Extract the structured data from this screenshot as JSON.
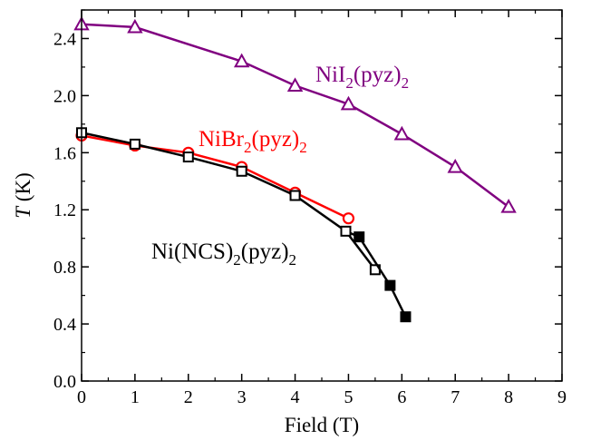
{
  "chart_data": {
    "type": "line",
    "xlabel_prefix": "Field",
    "xlabel_unit": "(T)",
    "ylabel_var": "T",
    "ylabel_unit": "(K)",
    "xlim": [
      0,
      9
    ],
    "ylim": [
      0,
      2.6
    ],
    "xticks": [
      0,
      1,
      2,
      3,
      4,
      5,
      6,
      7,
      8,
      9
    ],
    "yticks": [
      0.0,
      0.4,
      0.8,
      1.2,
      1.6,
      2.0,
      2.4
    ],
    "ytick_labels": [
      "0.0",
      "0.4",
      "0.8",
      "1.2",
      "1.6",
      "2.0",
      "2.4"
    ],
    "grid": false,
    "series": [
      {
        "label_base": "NiI",
        "label_sub1": "2",
        "label_mid": "(pyz)",
        "label_sub2": "2",
        "color": "#800080",
        "marker": "triangle-open",
        "x": [
          0,
          1,
          3,
          4,
          5,
          6,
          7,
          8
        ],
        "y": [
          2.5,
          2.48,
          2.24,
          2.07,
          1.94,
          1.73,
          1.5,
          1.22
        ]
      },
      {
        "label_base": "NiBr",
        "label_sub1": "2",
        "label_mid": "(pyz)",
        "label_sub2": "2",
        "color": "#ff0000",
        "marker": "circle-open",
        "x": [
          0,
          1,
          2,
          3,
          4,
          5
        ],
        "y": [
          1.72,
          1.65,
          1.6,
          1.5,
          1.32,
          1.14
        ]
      },
      {
        "label_base": "Ni(NCS)",
        "label_sub1": "2",
        "label_mid": "(pyz)",
        "label_sub2": "2",
        "color": "#000000",
        "marker": "square-open",
        "x": [
          0,
          1,
          2,
          3,
          4,
          4.95,
          5.5
        ],
        "y": [
          1.74,
          1.66,
          1.57,
          1.47,
          1.3,
          1.05,
          0.78
        ]
      },
      {
        "color": "#000000",
        "marker": "square-filled",
        "x": [
          5.2,
          5.78,
          6.07
        ],
        "y": [
          1.01,
          0.67,
          0.45
        ]
      }
    ]
  }
}
